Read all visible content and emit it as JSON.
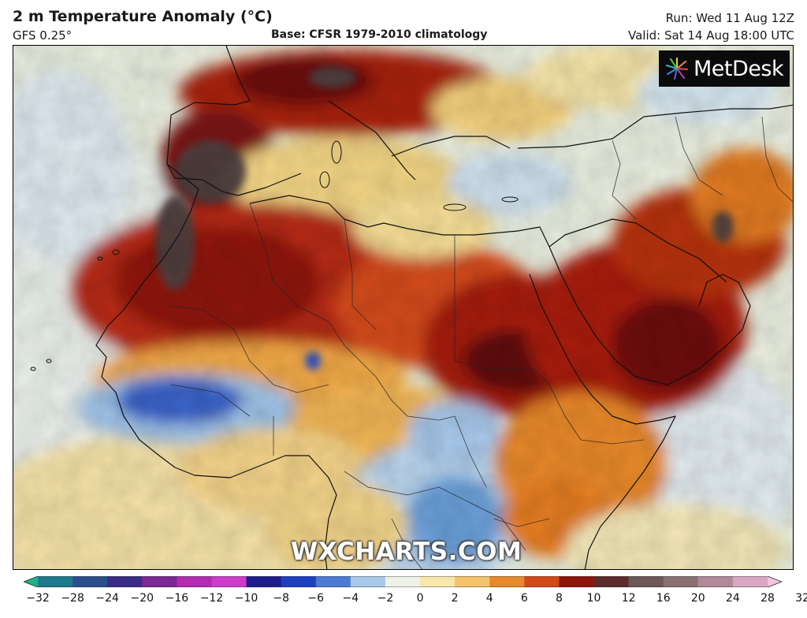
{
  "header": {
    "title": "2 m Temperature Anomaly (°C)",
    "model": "GFS 0.25°",
    "base": "Base: CFSR 1979-2010 climatology",
    "run": "Run: Wed 11 Aug 12Z",
    "valid": "Valid: Sat 14 Aug 18:00 UTC"
  },
  "logo": {
    "text": "MetDesk",
    "icon": "metdesk-star-icon"
  },
  "watermark": "WXCHARTS.COM",
  "map": {
    "region": "North Africa, Mediterranean and Arabian Peninsula",
    "colors": {
      "ocean_neutral": "#e6ecdc",
      "land_mild": "#f6e3a6",
      "warm": "#f3b35a",
      "hot": "#e0661f",
      "very_hot": "#b0200f",
      "extreme": "#6c0e0e",
      "record": "#4a3a3a",
      "cool": "#cfe2f2",
      "cold": "#6fa0d8",
      "very_cold": "#1f52c4"
    }
  },
  "colorbar": {
    "labels": [
      "−32",
      "−28",
      "−24",
      "−20",
      "−16",
      "−12",
      "−10",
      "−8",
      "−6",
      "−4",
      "−2",
      "0",
      "2",
      "4",
      "6",
      "8",
      "10",
      "12",
      "16",
      "20",
      "24",
      "28",
      "32"
    ],
    "colors": [
      "#19b38a",
      "#1d7a8a",
      "#2a4f8c",
      "#3a2c86",
      "#7b2a93",
      "#b22bb0",
      "#cf3ccc",
      "#1e1d8c",
      "#1f3fc1",
      "#4d7ad2",
      "#a9c9e8",
      "#eef2ea",
      "#f7e7a8",
      "#f4c46a",
      "#e8892c",
      "#d14a17",
      "#8f150c",
      "#5c2c2c",
      "#6d5757",
      "#8a7070",
      "#b08a98",
      "#d7a7c4",
      "#f2c3e0"
    ]
  }
}
